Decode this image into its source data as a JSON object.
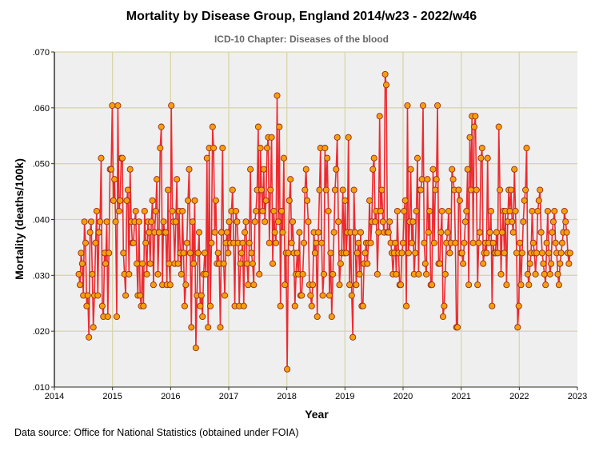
{
  "chart_data": {
    "type": "line",
    "title": "Mortality by Disease Group, England 2014/w23 - 2022/w46",
    "subtitle": "ICD-10 Chapter: Diseases of the blood",
    "xlabel": "Year",
    "ylabel": "Mortality (deaths/100k)",
    "footer": "Data source: Office for National Statistics (obtained under FOIA)",
    "x_start": "2014/w23",
    "x_end": "2022/w46",
    "x_step": "weekly",
    "xlim": [
      2014,
      2023
    ],
    "ylim": [
      0.01,
      0.07
    ],
    "x_ticks": [
      "2014",
      "2015",
      "2016",
      "2017",
      "2018",
      "2019",
      "2020",
      "2021",
      "2022",
      "2023"
    ],
    "y_ticks": [
      ".010",
      ".020",
      ".030",
      ".040",
      ".050",
      ".060",
      ".070"
    ],
    "grid": true,
    "colors": {
      "line": "#ee2a2f",
      "marker_fill": "#f5a00a",
      "marker_edge": "#9a2a1a",
      "plot_bg": "#efefef",
      "grid": "#d9d5ab"
    },
    "values": [
      0.0302,
      0.0283,
      0.034,
      0.0321,
      0.0264,
      0.0396,
      0.0358,
      0.0245,
      0.0264,
      0.0189,
      0.0377,
      0.0396,
      0.0302,
      0.0207,
      0.0264,
      0.0358,
      0.0415,
      0.0264,
      0.0377,
      0.0396,
      0.051,
      0.0245,
      0.0226,
      0.034,
      0.0321,
      0.0396,
      0.0226,
      0.034,
      0.049,
      0.049,
      0.0604,
      0.0434,
      0.0472,
      0.0396,
      0.0226,
      0.0604,
      0.0415,
      0.0434,
      0.051,
      0.051,
      0.034,
      0.0302,
      0.0264,
      0.0434,
      0.0453,
      0.0302,
      0.049,
      0.0396,
      0.0358,
      0.0358,
      0.0396,
      0.0415,
      0.0321,
      0.0264,
      0.0396,
      0.0264,
      0.0245,
      0.0321,
      0.0245,
      0.0415,
      0.0358,
      0.0302,
      0.0396,
      0.0377,
      0.0321,
      0.0396,
      0.0434,
      0.0283,
      0.0377,
      0.0415,
      0.0472,
      0.0302,
      0.0377,
      0.0528,
      0.0566,
      0.0283,
      0.0396,
      0.0377,
      0.0377,
      0.0283,
      0.0453,
      0.0321,
      0.0283,
      0.0604,
      0.0415,
      0.0396,
      0.0321,
      0.0396,
      0.0472,
      0.0321,
      0.0415,
      0.034,
      0.0302,
      0.0415,
      0.034,
      0.0245,
      0.0283,
      0.0358,
      0.0434,
      0.049,
      0.034,
      0.0207,
      0.0396,
      0.0321,
      0.0434,
      0.017,
      0.0264,
      0.034,
      0.0377,
      0.0245,
      0.0264,
      0.0226,
      0.0302,
      0.034,
      0.0302,
      0.051,
      0.0207,
      0.0528,
      0.0245,
      0.0358,
      0.0566,
      0.0528,
      0.0377,
      0.0434,
      0.0321,
      0.034,
      0.0321,
      0.0207,
      0.0377,
      0.0528,
      0.0321,
      0.0264,
      0.0358,
      0.0377,
      0.034,
      0.0396,
      0.0358,
      0.0415,
      0.0453,
      0.0358,
      0.0245,
      0.0415,
      0.0396,
      0.0358,
      0.0245,
      0.0321,
      0.034,
      0.0358,
      0.0245,
      0.0377,
      0.0396,
      0.0321,
      0.0283,
      0.0358,
      0.049,
      0.034,
      0.0321,
      0.0283,
      0.0396,
      0.0415,
      0.0453,
      0.0566,
      0.0302,
      0.0528,
      0.0453,
      0.0415,
      0.049,
      0.0396,
      0.0434,
      0.0528,
      0.0547,
      0.0358,
      0.0453,
      0.0547,
      0.0321,
      0.0415,
      0.0377,
      0.0358,
      0.0622,
      0.0396,
      0.0566,
      0.0245,
      0.0415,
      0.0377,
      0.051,
      0.0283,
      0.034,
      0.0132,
      0.034,
      0.0434,
      0.0472,
      0.0358,
      0.0396,
      0.034,
      0.0245,
      0.0302,
      0.034,
      0.0302,
      0.0377,
      0.0264,
      0.0264,
      0.0302,
      0.0358,
      0.0453,
      0.049,
      0.0434,
      0.0396,
      0.0283,
      0.0264,
      0.0245,
      0.0283,
      0.0377,
      0.034,
      0.0358,
      0.0226,
      0.0377,
      0.0453,
      0.0528,
      0.0358,
      0.0264,
      0.0302,
      0.0528,
      0.0453,
      0.051,
      0.0415,
      0.0264,
      0.034,
      0.0226,
      0.0302,
      0.0377,
      0.0453,
      0.049,
      0.0547,
      0.0396,
      0.0283,
      0.0321,
      0.034,
      0.0453,
      0.034,
      0.0434,
      0.034,
      0.0377,
      0.0547,
      0.0283,
      0.0377,
      0.0264,
      0.0189,
      0.0453,
      0.0377,
      0.0283,
      0.034,
      0.0358,
      0.0302,
      0.0377,
      0.0245,
      0.0245,
      0.0321,
      0.034,
      0.0358,
      0.0321,
      0.0358,
      0.0434,
      0.0358,
      0.0396,
      0.049,
      0.051,
      0.0396,
      0.0415,
      0.0302,
      0.0377,
      0.0585,
      0.0415,
      0.0453,
      0.0396,
      0.0377,
      0.066,
      0.0641,
      0.0377,
      0.0377,
      0.0396,
      0.0358,
      0.034,
      0.0302,
      0.034,
      0.0358,
      0.0302,
      0.0415,
      0.034,
      0.0283,
      0.0283,
      0.034,
      0.0358,
      0.0415,
      0.0434,
      0.0245,
      0.0604,
      0.034,
      0.0396,
      0.049,
      0.0358,
      0.0396,
      0.0302,
      0.034,
      0.0415,
      0.051,
      0.0302,
      0.0453,
      0.0453,
      0.0472,
      0.0604,
      0.0358,
      0.0321,
      0.0302,
      0.0472,
      0.0377,
      0.0415,
      0.0283,
      0.0283,
      0.049,
      0.0358,
      0.0453,
      0.0472,
      0.0604,
      0.0321,
      0.0321,
      0.0377,
      0.0415,
      0.0226,
      0.0245,
      0.0302,
      0.0358,
      0.0377,
      0.0415,
      0.034,
      0.0358,
      0.049,
      0.0472,
      0.0453,
      0.0358,
      0.0207,
      0.0207,
      0.0453,
      0.0434,
      0.034,
      0.034,
      0.0321,
      0.0358,
      0.0396,
      0.0415,
      0.049,
      0.0283,
      0.0547,
      0.0453,
      0.0585,
      0.0358,
      0.0566,
      0.0585,
      0.0453,
      0.0283,
      0.0358,
      0.0377,
      0.051,
      0.0528,
      0.0321,
      0.034,
      0.0358,
      0.034,
      0.051,
      0.0358,
      0.0377,
      0.0415,
      0.0245,
      0.0358,
      0.034,
      0.034,
      0.0377,
      0.034,
      0.0566,
      0.0453,
      0.0302,
      0.0377,
      0.0415,
      0.034,
      0.0415,
      0.0283,
      0.0396,
      0.0453,
      0.0415,
      0.0453,
      0.0396,
      0.0377,
      0.049,
      0.0415,
      0.034,
      0.0207,
      0.0245,
      0.0358,
      0.0283,
      0.034,
      0.0396,
      0.0434,
      0.0453,
      0.0528,
      0.0302,
      0.0283,
      0.0321,
      0.034,
      0.0415,
      0.0358,
      0.034,
      0.0302,
      0.034,
      0.0415,
      0.0434,
      0.0453,
      0.0377,
      0.034,
      0.0321,
      0.0302,
      0.0283,
      0.0358,
      0.0415,
      0.034,
      0.0302,
      0.0321,
      0.0377,
      0.0396,
      0.0415,
      0.0358,
      0.034,
      0.0302,
      0.0283,
      0.0321,
      0.034,
      0.0358,
      0.0377,
      0.0415,
      0.0396,
      0.0377,
      0.034,
      0.0321,
      0.034
    ]
  }
}
